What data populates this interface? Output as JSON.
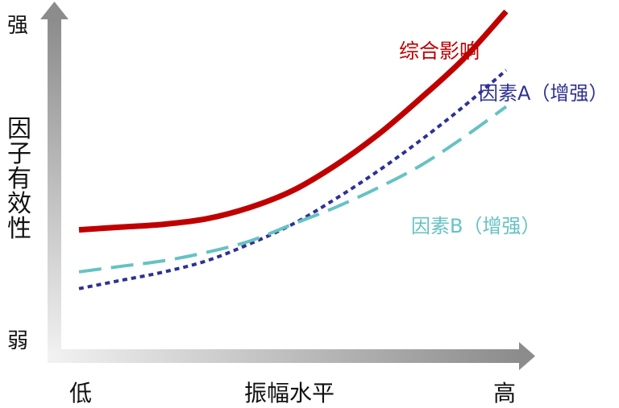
{
  "chart_data": {
    "type": "line",
    "title": "",
    "xlabel": "振幅水平",
    "ylabel": "因子有效性",
    "x_low_label": "低",
    "x_high_label": "高",
    "y_low_label": "弱",
    "y_high_label": "强",
    "xlim": [
      0,
      1
    ],
    "ylim": [
      0,
      1
    ],
    "grid": false,
    "legend": "inline-labels",
    "series": [
      {
        "name": "综合影响",
        "color": "#c00000",
        "style": "solid",
        "x": [
          0,
          0.1,
          0.2,
          0.3,
          0.4,
          0.5,
          0.6,
          0.7,
          0.8,
          0.9,
          1.0
        ],
        "y": [
          0.3,
          0.31,
          0.32,
          0.34,
          0.38,
          0.44,
          0.53,
          0.64,
          0.77,
          0.91,
          1.08
        ]
      },
      {
        "name": "因素A（增强）",
        "color": "#2e3192",
        "style": "dotted",
        "x": [
          0,
          0.1,
          0.2,
          0.3,
          0.4,
          0.5,
          0.6,
          0.7,
          0.8,
          0.9,
          1.0
        ],
        "y": [
          0.09,
          0.12,
          0.15,
          0.19,
          0.25,
          0.32,
          0.41,
          0.51,
          0.62,
          0.74,
          0.87
        ]
      },
      {
        "name": "因素B（增强）",
        "color": "#66c2c2",
        "style": "dashed",
        "x": [
          0,
          0.1,
          0.2,
          0.3,
          0.4,
          0.5,
          0.6,
          0.7,
          0.8,
          0.9,
          1.0
        ],
        "y": [
          0.15,
          0.17,
          0.19,
          0.22,
          0.26,
          0.32,
          0.38,
          0.45,
          0.53,
          0.63,
          0.74
        ]
      }
    ]
  }
}
